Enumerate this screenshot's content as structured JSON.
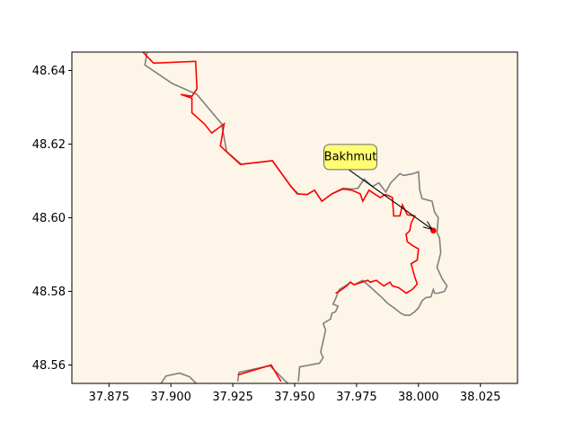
{
  "chart_data": {
    "type": "map",
    "xlim": [
      37.86,
      38.04
    ],
    "ylim": [
      48.555,
      48.645
    ],
    "x_ticks": [
      37.875,
      37.9,
      37.925,
      37.95,
      37.975,
      38.0,
      38.025
    ],
    "x_tick_labels": [
      "37.875",
      "37.900",
      "37.925",
      "37.950",
      "37.975",
      "38.000",
      "38.025"
    ],
    "y_ticks": [
      48.56,
      48.58,
      48.6,
      48.62,
      48.64
    ],
    "y_tick_labels": [
      "48.56",
      "48.58",
      "48.60",
      "48.62",
      "48.64"
    ],
    "grid": false,
    "colors": {
      "background": "#fdf5e8",
      "red_line": "#ff0000",
      "gray_line": "#808080",
      "point": "#ff0000",
      "label_box": "#ffff66"
    },
    "point": {
      "lon": 38.006,
      "lat": 48.5965
    },
    "annotation": {
      "text": "Bakhmut",
      "lon": 37.9725,
      "lat": 48.6165
    },
    "red_line_1": [
      [
        37.888,
        48.6455
      ],
      [
        37.893,
        48.642
      ],
      [
        37.91,
        48.6425
      ],
      [
        37.9105,
        48.635
      ],
      [
        37.9085,
        48.633
      ],
      [
        37.904,
        48.6335
      ],
      [
        37.9085,
        48.6325
      ],
      [
        37.9085,
        48.6285
      ],
      [
        37.9135,
        48.6255
      ],
      [
        37.9165,
        48.623
      ],
      [
        37.9215,
        48.6255
      ],
      [
        37.92,
        48.6195
      ],
      [
        37.928,
        48.6145
      ],
      [
        37.941,
        48.6155
      ],
      [
        37.9485,
        48.6085
      ],
      [
        37.951,
        48.6065
      ],
      [
        37.955,
        48.6063
      ],
      [
        37.958,
        48.6075
      ],
      [
        37.961,
        48.6045
      ],
      [
        37.965,
        48.6065
      ],
      [
        37.9695,
        48.6078
      ],
      [
        37.973,
        48.6075
      ],
      [
        37.9765,
        48.6065
      ],
      [
        37.9775,
        48.6045
      ],
      [
        37.98,
        48.6075
      ],
      [
        37.9845,
        48.6055
      ],
      [
        37.9865,
        48.6063
      ],
      [
        37.988,
        48.606
      ],
      [
        37.9895,
        48.6055
      ],
      [
        37.99,
        48.6005
      ],
      [
        37.9925,
        48.6005
      ],
      [
        37.9935,
        48.6035
      ],
      [
        37.9955,
        48.6008
      ],
      [
        37.9985,
        48.6005
      ],
      [
        37.997,
        48.5985
      ],
      [
        37.9965,
        48.5965
      ],
      [
        37.995,
        48.5955
      ],
      [
        37.9955,
        48.5935
      ],
      [
        37.9975,
        48.5925
      ],
      [
        38.0,
        48.5915
      ],
      [
        37.9995,
        48.5885
      ],
      [
        37.997,
        48.5875
      ],
      [
        37.9985,
        48.584
      ],
      [
        37.9995,
        48.582
      ],
      [
        37.9975,
        48.5805
      ],
      [
        37.995,
        48.5795
      ],
      [
        37.992,
        48.581
      ],
      [
        37.9895,
        48.5815
      ],
      [
        37.9885,
        48.5825
      ],
      [
        37.986,
        48.5815
      ],
      [
        37.983,
        48.583
      ],
      [
        37.9805,
        48.5825
      ],
      [
        37.9795,
        48.583
      ],
      [
        37.974,
        48.5818
      ],
      [
        37.9725,
        48.5825
      ],
      [
        37.971,
        48.5815
      ],
      [
        37.968,
        48.58
      ],
      [
        37.9665,
        48.5795
      ]
    ],
    "red_line_2": [
      [
        37.927,
        48.5573
      ],
      [
        37.9405,
        48.56
      ],
      [
        37.9445,
        48.5555
      ]
    ],
    "gray_line_1": [
      [
        37.8905,
        48.6455
      ],
      [
        37.8895,
        48.6415
      ],
      [
        37.9005,
        48.6365
      ],
      [
        37.9105,
        48.6335
      ],
      [
        37.9205,
        48.6255
      ],
      [
        37.9225,
        48.618
      ],
      [
        37.9285,
        48.6145
      ],
      [
        37.941,
        48.6155
      ],
      [
        37.9485,
        48.6085
      ],
      [
        37.9515,
        48.6065
      ],
      [
        37.955,
        48.6063
      ],
      [
        37.958,
        48.6075
      ],
      [
        37.961,
        48.6045
      ],
      [
        37.965,
        48.6065
      ],
      [
        37.9695,
        48.608
      ],
      [
        37.9735,
        48.6078
      ],
      [
        37.9755,
        48.608
      ],
      [
        37.978,
        48.6105
      ],
      [
        37.9815,
        48.6085
      ],
      [
        37.984,
        48.6095
      ],
      [
        37.9868,
        48.607
      ],
      [
        37.9888,
        48.6095
      ],
      [
        37.9925,
        48.612
      ],
      [
        37.994,
        48.6115
      ],
      [
        37.998,
        48.612
      ],
      [
        38.0,
        48.6125
      ],
      [
        38.0005,
        48.6075
      ],
      [
        38.0015,
        48.6052
      ],
      [
        38.0055,
        48.6045
      ],
      [
        38.0065,
        48.6015
      ],
      [
        38.008,
        48.6
      ],
      [
        38.0075,
        48.596
      ],
      [
        38.0085,
        48.5945
      ],
      [
        38.009,
        48.5905
      ],
      [
        38.0075,
        48.5865
      ],
      [
        38.0095,
        48.5835
      ],
      [
        38.0115,
        48.5815
      ],
      [
        38.0105,
        48.58
      ],
      [
        38.008,
        48.5795
      ],
      [
        38.0065,
        48.5795
      ],
      [
        38.006,
        48.5805
      ],
      [
        38.005,
        48.5785
      ],
      [
        38.003,
        48.5783
      ],
      [
        38.0015,
        48.5775
      ],
      [
        38.0,
        48.5755
      ],
      [
        37.9985,
        48.5745
      ],
      [
        37.9965,
        48.5735
      ],
      [
        37.9945,
        48.5735
      ],
      [
        37.993,
        48.574
      ],
      [
        37.9905,
        48.5753
      ],
      [
        37.9875,
        48.5768
      ],
      [
        37.985,
        48.5785
      ],
      [
        37.98,
        48.5815
      ],
      [
        37.9775,
        48.583
      ],
      [
        37.974,
        48.5818
      ],
      [
        37.9725,
        48.5825
      ],
      [
        37.9712,
        48.5818
      ],
      [
        37.968,
        48.5805
      ],
      [
        37.9665,
        48.578
      ],
      [
        37.9655,
        48.5765
      ],
      [
        37.9675,
        48.576
      ],
      [
        37.9665,
        48.5745
      ],
      [
        37.965,
        48.574
      ],
      [
        37.9645,
        48.5725
      ],
      [
        37.9615,
        48.5713
      ],
      [
        37.9625,
        48.5695
      ],
      [
        37.9615,
        48.5665
      ],
      [
        37.9605,
        48.5635
      ],
      [
        37.9615,
        48.562
      ],
      [
        37.96,
        48.5605
      ],
      [
        37.952,
        48.5595
      ],
      [
        37.9515,
        48.5555
      ]
    ],
    "gray_line_2": [
      [
        37.8955,
        48.5545
      ],
      [
        37.898,
        48.557
      ],
      [
        37.9035,
        48.5578
      ],
      [
        37.9075,
        48.5568
      ],
      [
        37.9105,
        48.5548
      ]
    ],
    "gray_line_3": [
      [
        37.927,
        48.5555
      ],
      [
        37.9275,
        48.558
      ],
      [
        37.94,
        48.5598
      ],
      [
        37.9475,
        48.5548
      ]
    ]
  }
}
